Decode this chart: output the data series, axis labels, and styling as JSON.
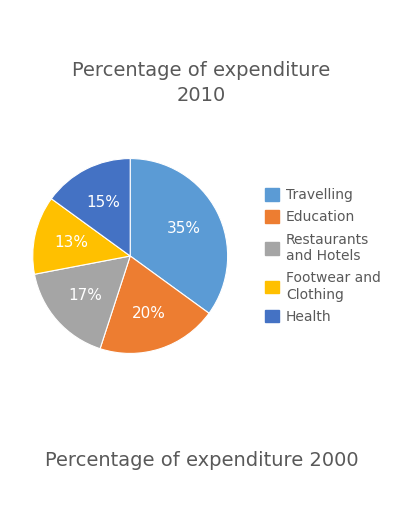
{
  "title": "Percentage of expenditure\n2010",
  "subtitle": "Percentage of expenditure 2000",
  "legend_labels": [
    "Travelling",
    "Education",
    "Restaurants\nand Hotels",
    "Footwear and\nClothing",
    "Health"
  ],
  "values": [
    35,
    20,
    17,
    13,
    15
  ],
  "colors": [
    "#5B9BD5",
    "#ED7D31",
    "#A5A5A5",
    "#FFC000",
    "#4472C4"
  ],
  "pct_labels": [
    "35%",
    "20%",
    "17%",
    "13%",
    "15%"
  ],
  "background_color": "#FFFFFF",
  "title_fontsize": 14,
  "subtitle_fontsize": 14,
  "legend_fontsize": 10,
  "pct_fontsize": 11,
  "startangle": 90
}
